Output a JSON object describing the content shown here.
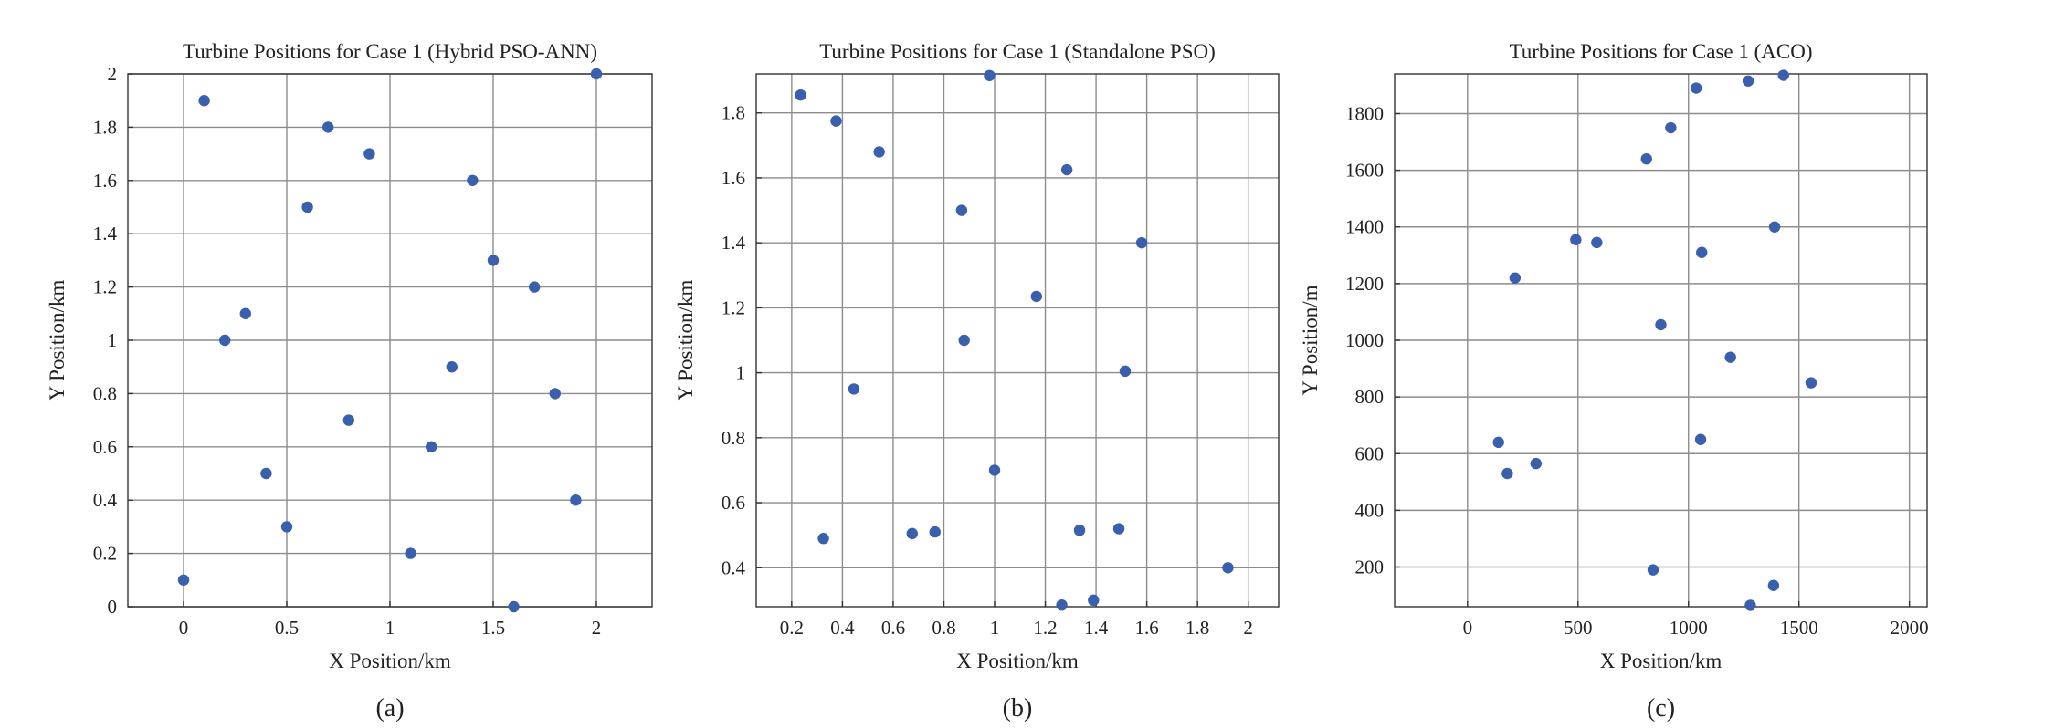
{
  "chart_data": [
    {
      "type": "scatter",
      "title": "Turbine Positions for Case 1 (Hybrid PSO-ANN)",
      "xlabel": "X Position/km",
      "ylabel": "Y Position/km",
      "panel_label": "(a)",
      "xlim": [
        -0.27,
        2.27
      ],
      "ylim": [
        0,
        2
      ],
      "xticks": [
        0,
        0.5,
        1,
        1.5,
        2
      ],
      "xtick_labels": [
        "0",
        "0.5",
        "1",
        "1.5",
        "2"
      ],
      "yticks": [
        0,
        0.2,
        0.4,
        0.6,
        0.8,
        1,
        1.2,
        1.4,
        1.6,
        1.8,
        2
      ],
      "ytick_labels": [
        "0",
        "0.2",
        "0.4",
        "0.6",
        "0.8",
        "1",
        "1.2",
        "1.4",
        "1.6",
        "1.8",
        "2"
      ],
      "grid": true,
      "color": "#3a5fad",
      "points": [
        {
          "x": 0.0,
          "y": 0.1
        },
        {
          "x": 0.1,
          "y": 1.9
        },
        {
          "x": 0.2,
          "y": 1.0
        },
        {
          "x": 0.3,
          "y": 1.1
        },
        {
          "x": 0.4,
          "y": 0.5
        },
        {
          "x": 0.5,
          "y": 0.3
        },
        {
          "x": 0.6,
          "y": 1.5
        },
        {
          "x": 0.7,
          "y": 1.8
        },
        {
          "x": 0.8,
          "y": 0.7
        },
        {
          "x": 0.9,
          "y": 1.7
        },
        {
          "x": 1.1,
          "y": 0.2
        },
        {
          "x": 1.2,
          "y": 0.6
        },
        {
          "x": 1.3,
          "y": 0.9
        },
        {
          "x": 1.4,
          "y": 1.6
        },
        {
          "x": 1.5,
          "y": 1.3
        },
        {
          "x": 1.6,
          "y": 0.0
        },
        {
          "x": 1.7,
          "y": 1.2
        },
        {
          "x": 1.8,
          "y": 0.8
        },
        {
          "x": 1.9,
          "y": 0.4
        },
        {
          "x": 2.0,
          "y": 2.0
        }
      ]
    },
    {
      "type": "scatter",
      "title": "Turbine Positions for Case 1 (Standalone PSO)",
      "xlabel": "X Position/km",
      "ylabel": "Y Position/km",
      "panel_label": "(b)",
      "xlim": [
        0.06,
        2.12
      ],
      "ylim": [
        0.28,
        1.92
      ],
      "xticks": [
        0.2,
        0.4,
        0.6,
        0.8,
        1,
        1.2,
        1.4,
        1.6,
        1.8,
        2
      ],
      "xtick_labels": [
        "0.2",
        "0.4",
        "0.6",
        "0.8",
        "1",
        "1.2",
        "1.4",
        "1.6",
        "1.8",
        "2"
      ],
      "yticks": [
        0.4,
        0.6,
        0.8,
        1,
        1.2,
        1.4,
        1.6,
        1.8
      ],
      "ytick_labels": [
        "0.4",
        "0.6",
        "0.8",
        "1",
        "1.2",
        "1.4",
        "1.6",
        "1.8"
      ],
      "grid": true,
      "color": "#3a5fad",
      "points": [
        {
          "x": 0.235,
          "y": 1.855
        },
        {
          "x": 0.325,
          "y": 0.49
        },
        {
          "x": 0.375,
          "y": 1.775
        },
        {
          "x": 0.445,
          "y": 0.95
        },
        {
          "x": 0.545,
          "y": 1.68
        },
        {
          "x": 0.675,
          "y": 0.505
        },
        {
          "x": 0.765,
          "y": 0.51
        },
        {
          "x": 0.87,
          "y": 1.5
        },
        {
          "x": 0.88,
          "y": 1.1
        },
        {
          "x": 0.98,
          "y": 1.915
        },
        {
          "x": 1.0,
          "y": 0.7
        },
        {
          "x": 1.165,
          "y": 1.235
        },
        {
          "x": 1.265,
          "y": 0.285
        },
        {
          "x": 1.285,
          "y": 1.625
        },
        {
          "x": 1.335,
          "y": 0.515
        },
        {
          "x": 1.39,
          "y": 0.3
        },
        {
          "x": 1.49,
          "y": 0.52
        },
        {
          "x": 1.515,
          "y": 1.005
        },
        {
          "x": 1.58,
          "y": 1.4
        },
        {
          "x": 1.92,
          "y": 0.4
        }
      ]
    },
    {
      "type": "scatter",
      "title": "Turbine Positions for Case 1 (ACO)",
      "xlabel": "X Position/km",
      "ylabel": "Y Position/m",
      "panel_label": "(c)",
      "xlim": [
        -330,
        2080
      ],
      "ylim": [
        60,
        1940
      ],
      "xticks": [
        0,
        500,
        1000,
        1500,
        2000
      ],
      "xtick_labels": [
        "0",
        "500",
        "1000",
        "1500",
        "2000"
      ],
      "yticks": [
        200,
        400,
        600,
        800,
        1000,
        1200,
        1400,
        1600,
        1800
      ],
      "ytick_labels": [
        "200",
        "400",
        "600",
        "800",
        "1000",
        "1200",
        "1400",
        "1600",
        "1800"
      ],
      "grid": true,
      "color": "#3a5fad",
      "points": [
        {
          "x": 140,
          "y": 640
        },
        {
          "x": 180,
          "y": 530
        },
        {
          "x": 215,
          "y": 1220
        },
        {
          "x": 310,
          "y": 565
        },
        {
          "x": 490,
          "y": 1355
        },
        {
          "x": 585,
          "y": 1345
        },
        {
          "x": 810,
          "y": 1640
        },
        {
          "x": 840,
          "y": 190
        },
        {
          "x": 875,
          "y": 1055
        },
        {
          "x": 920,
          "y": 1750
        },
        {
          "x": 1035,
          "y": 1890
        },
        {
          "x": 1055,
          "y": 650
        },
        {
          "x": 1060,
          "y": 1310
        },
        {
          "x": 1190,
          "y": 940
        },
        {
          "x": 1270,
          "y": 1915
        },
        {
          "x": 1280,
          "y": 65
        },
        {
          "x": 1385,
          "y": 135
        },
        {
          "x": 1390,
          "y": 1400
        },
        {
          "x": 1430,
          "y": 1935
        },
        {
          "x": 1555,
          "y": 850
        }
      ]
    }
  ]
}
